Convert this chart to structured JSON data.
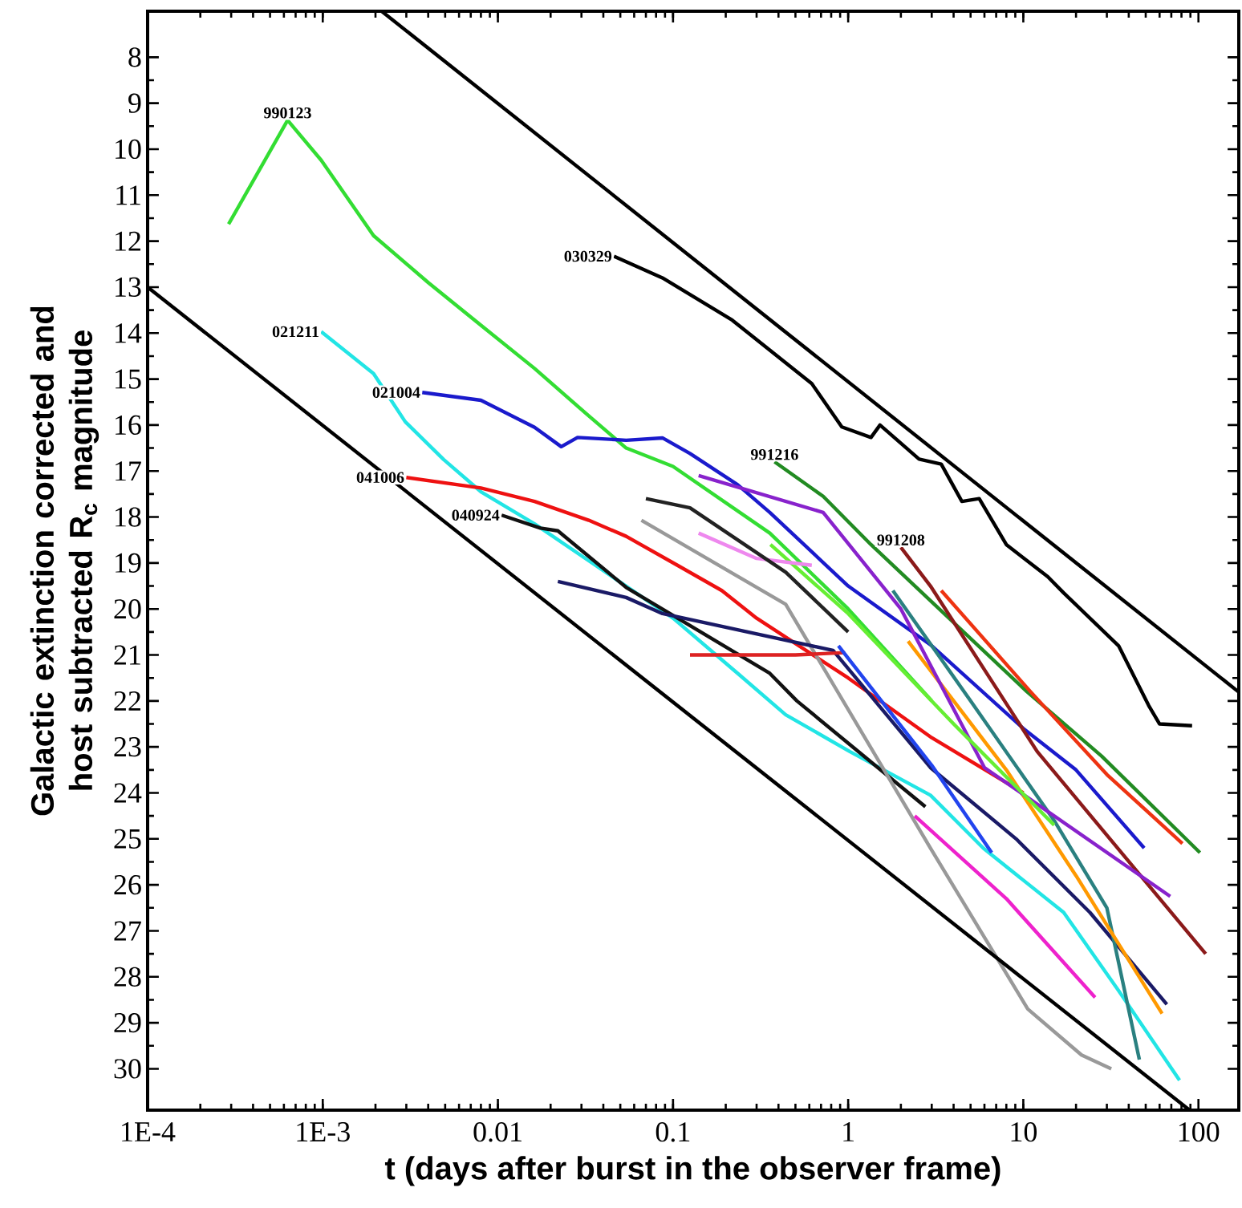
{
  "chart_data": {
    "type": "line",
    "xlabel": "t (days after burst in the observer frame)",
    "ylabel": "Galactic extinction corrected and host subtracted R$_{c}$ magnitude",
    "log": "x",
    "xlim": [
      0.0001,
      170
    ],
    "ylim": [
      30.9,
      7
    ],
    "xticks": [
      {
        "value": 0.0001,
        "label": "1E-4"
      },
      {
        "value": 0.001,
        "label": "1E-3"
      },
      0.01,
      0.1,
      1,
      10,
      100
    ],
    "yticks": [
      8,
      9,
      10,
      11,
      12,
      13,
      14,
      15,
      16,
      17,
      18,
      19,
      20,
      21,
      22,
      23,
      24,
      25,
      26,
      27,
      28,
      29,
      30
    ],
    "series": [
      {
        "name": "990123",
        "color": "#33dd33",
        "x": [
          0.00029,
          0.00063,
          0.00098,
          0.00195,
          0.004,
          0.008,
          0.0162,
          0.033,
          0.054,
          0.1,
          0.357,
          1,
          3
        ],
        "values": [
          11.63,
          9.37,
          10.24,
          11.88,
          12.9,
          13.83,
          14.77,
          15.8,
          16.5,
          16.9,
          18.35,
          20.0,
          22.0
        ]
      },
      {
        "name": "021211",
        "color": "#22e5e5",
        "x": [
          0.00098,
          0.00195,
          0.00296,
          0.0049,
          0.008,
          0.0162,
          0.033,
          0.1,
          0.234,
          0.44,
          1.02,
          2.95,
          5.9,
          17,
          35,
          78
        ],
        "values": [
          13.97,
          14.88,
          15.93,
          16.75,
          17.45,
          18.15,
          18.95,
          20.2,
          21.4,
          22.3,
          23.1,
          24.05,
          25.2,
          26.6,
          28.3,
          30.25
        ]
      },
      {
        "name": "021004",
        "color": "#1a1acc",
        "x": [
          0.0037,
          0.008,
          0.0162,
          0.023,
          0.0285,
          0.054,
          0.087,
          0.125,
          0.234,
          0.357,
          1,
          3,
          10,
          20,
          49
        ],
        "values": [
          15.29,
          15.46,
          16.05,
          16.47,
          16.27,
          16.33,
          16.28,
          16.62,
          17.3,
          17.9,
          19.5,
          20.8,
          22.6,
          23.5,
          25.2
        ]
      },
      {
        "name": "041006",
        "color": "#ee1111",
        "x": [
          0.003,
          0.008,
          0.0162,
          0.033,
          0.054,
          0.106,
          0.19,
          0.3,
          1,
          3,
          10
        ],
        "values": [
          17.14,
          17.37,
          17.66,
          18.07,
          18.42,
          19.05,
          19.6,
          20.2,
          21.5,
          22.8,
          24.0
        ]
      },
      {
        "name": "040924",
        "color": "#111111",
        "x": [
          0.0105,
          0.0175,
          0.022,
          0.054,
          0.357,
          0.51,
          2.76
        ],
        "values": [
          17.96,
          18.24,
          18.3,
          19.53,
          21.4,
          22.0,
          24.3
        ]
      },
      {
        "name": "030329",
        "color": "#000000",
        "x": [
          0.046,
          0.087,
          0.218,
          0.62,
          0.92,
          1.35,
          1.52,
          2.54,
          3.4,
          4.46,
          5.6,
          8.0,
          13.8,
          17,
          35,
          52,
          60,
          92
        ],
        "values": [
          12.33,
          12.8,
          13.72,
          15.1,
          16.04,
          16.27,
          16.0,
          16.74,
          16.85,
          17.66,
          17.6,
          18.6,
          19.3,
          19.65,
          20.8,
          22.1,
          22.5,
          22.54
        ]
      },
      {
        "name": "991216",
        "color": "#228b22",
        "x": [
          0.38,
          0.72,
          1.35,
          10.5,
          28,
          102
        ],
        "values": [
          16.8,
          17.55,
          18.6,
          21.8,
          23.2,
          25.3
        ]
      },
      {
        "name": "991208",
        "color": "#8b1a1a",
        "x": [
          2.0,
          2.95,
          12,
          110
        ],
        "values": [
          18.66,
          19.5,
          23.1,
          27.5
        ]
      },
      {
        "color": "#999999",
        "x": [
          0.066,
          0.44,
          2.95,
          10.6,
          21.5,
          31.8
        ],
        "values": [
          18.07,
          19.9,
          25.2,
          28.7,
          29.7,
          30.0
        ]
      },
      {
        "color": "#ee22cc",
        "x": [
          2.4,
          8,
          25.7
        ],
        "values": [
          24.5,
          26.3,
          28.45
        ]
      },
      {
        "color": "#1a1a66",
        "x": [
          0.022,
          0.054,
          0.087,
          0.82,
          2.95,
          9.1,
          24,
          66
        ],
        "values": [
          19.4,
          19.75,
          20.1,
          20.9,
          23.45,
          25.0,
          26.6,
          28.6
        ]
      },
      {
        "color": "#2a8080",
        "x": [
          1.8,
          5,
          15,
          30,
          46
        ],
        "values": [
          19.6,
          22.0,
          24.6,
          26.5,
          29.8
        ]
      },
      {
        "color": "#ff9900",
        "x": [
          2.2,
          8,
          20,
          62
        ],
        "values": [
          20.7,
          23.5,
          25.8,
          28.8
        ]
      },
      {
        "color": "#8822cc",
        "x": [
          0.14,
          0.72,
          2,
          6,
          69
        ],
        "values": [
          17.1,
          17.9,
          20.0,
          23.45,
          26.25
        ]
      },
      {
        "color": "#66ee33",
        "x": [
          0.36,
          1,
          4,
          15
        ],
        "values": [
          18.6,
          20.1,
          22.5,
          24.7
        ]
      },
      {
        "color": "#ee88ee",
        "x": [
          0.14,
          0.3,
          0.62
        ],
        "values": [
          18.35,
          18.9,
          19.05
        ]
      },
      {
        "color": "#dd2222",
        "x": [
          0.125,
          0.5,
          0.96
        ],
        "values": [
          21.0,
          21.0,
          20.95
        ]
      },
      {
        "color": "#ee3311",
        "x": [
          3.4,
          11,
          30,
          81
        ],
        "values": [
          19.6,
          21.8,
          23.6,
          25.1
        ]
      },
      {
        "color": "#222222",
        "x": [
          0.07,
          0.125,
          0.44,
          1
        ],
        "values": [
          17.6,
          17.8,
          19.2,
          20.5
        ]
      },
      {
        "color": "#2244ee",
        "x": [
          0.88,
          3,
          6.6
        ],
        "values": [
          20.8,
          23.4,
          25.3
        ]
      },
      {
        "color": "#000000",
        "x": [
          0.00217,
          169
        ],
        "values": [
          7.0,
          21.8
        ]
      },
      {
        "color": "#000000",
        "x": [
          0.0001,
          89
        ],
        "values": [
          13.0,
          30.9
        ]
      }
    ]
  }
}
